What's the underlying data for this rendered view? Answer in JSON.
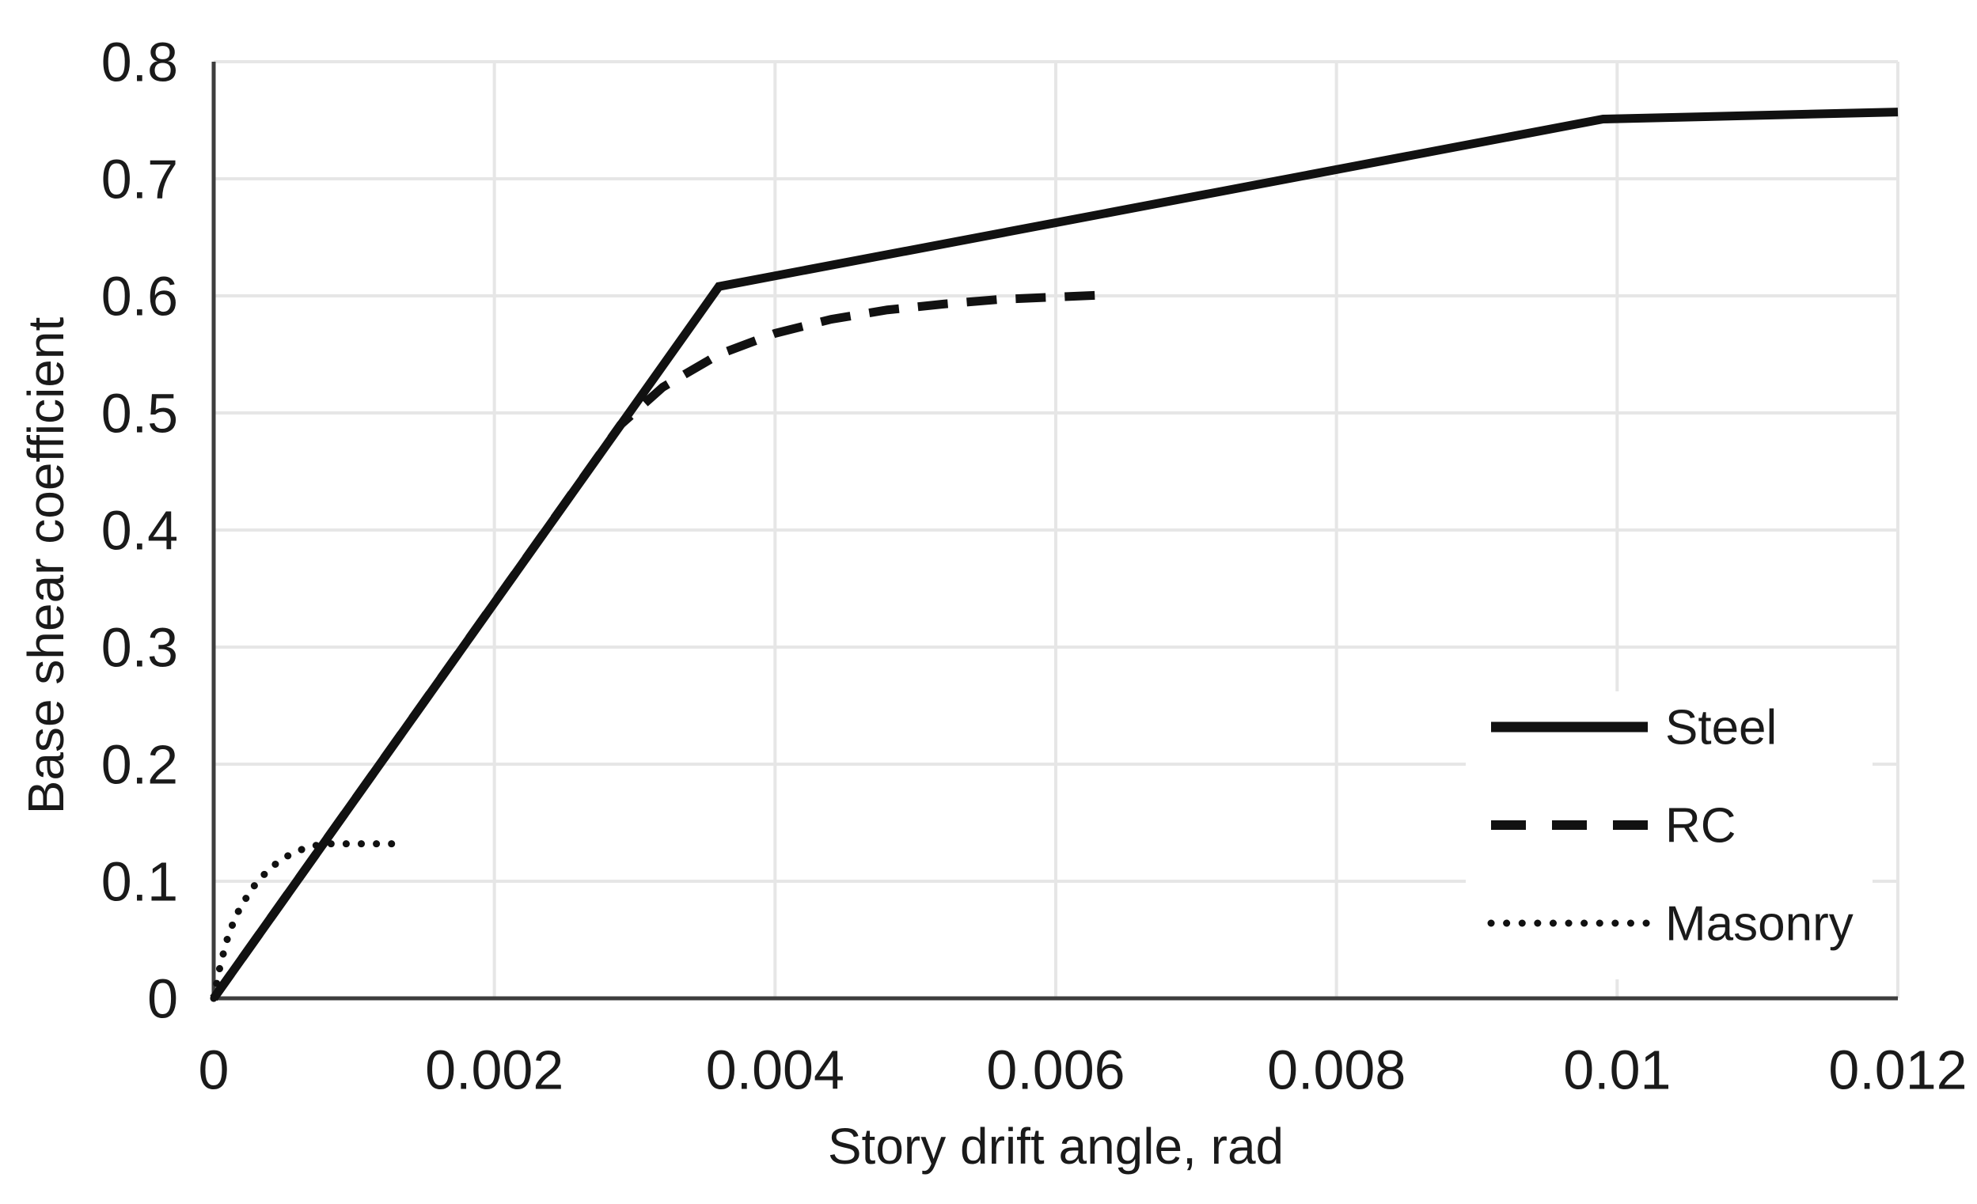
{
  "figure": {
    "background": "#ffffff"
  },
  "chart_data": {
    "type": "line",
    "title": "",
    "xlabel": "Story drift angle, rad",
    "ylabel": "Base shear coefficient",
    "xlim": [
      0,
      0.012
    ],
    "ylim": [
      0,
      0.8
    ],
    "grid": true,
    "legend_position": "inside lower right",
    "colors": {
      "line": "#111111",
      "grid": "#e6e6e6",
      "axis": "#3d3d3d",
      "text": "#1a1a1a",
      "legend_background": "#ffffff"
    },
    "xticks": [
      {
        "value": 0,
        "label": "0"
      },
      {
        "value": 0.002,
        "label": "0.002"
      },
      {
        "value": 0.004,
        "label": "0.004"
      },
      {
        "value": 0.006,
        "label": "0.006"
      },
      {
        "value": 0.008,
        "label": "0.008"
      },
      {
        "value": 0.01,
        "label": "0.01"
      },
      {
        "value": 0.012,
        "label": "0.012"
      }
    ],
    "yticks": [
      {
        "value": 0,
        "label": "0"
      },
      {
        "value": 0.1,
        "label": "0.1"
      },
      {
        "value": 0.2,
        "label": "0.2"
      },
      {
        "value": 0.3,
        "label": "0.3"
      },
      {
        "value": 0.4,
        "label": "0.4"
      },
      {
        "value": 0.5,
        "label": "0.5"
      },
      {
        "value": 0.6,
        "label": "0.6"
      },
      {
        "value": 0.7,
        "label": "0.7"
      },
      {
        "value": 0.8,
        "label": "0.8"
      }
    ],
    "series": [
      {
        "name": "Steel",
        "line_style": "solid",
        "x": [
          0,
          0.0036,
          0.0099,
          0.012
        ],
        "y": [
          0,
          0.608,
          0.751,
          0.757
        ]
      },
      {
        "name": "RC",
        "line_style": "dashed",
        "x": [
          0,
          0.0029,
          0.0032,
          0.0036,
          0.004,
          0.0044,
          0.0048,
          0.0052,
          0.0056,
          0.006,
          0.0064
        ],
        "y": [
          0,
          0.49,
          0.522,
          0.55,
          0.568,
          0.58,
          0.588,
          0.593,
          0.597,
          0.599,
          0.601
        ]
      },
      {
        "name": "Masonry",
        "line_style": "dotted",
        "x": [
          0,
          5e-05,
          0.0001,
          0.00015,
          0.0002,
          0.0003,
          0.0004,
          0.0005,
          0.0006,
          0.0007,
          0.0008,
          0.00135
        ],
        "y": [
          0,
          0.03,
          0.052,
          0.068,
          0.08,
          0.098,
          0.111,
          0.12,
          0.126,
          0.13,
          0.132,
          0.132
        ]
      }
    ]
  }
}
